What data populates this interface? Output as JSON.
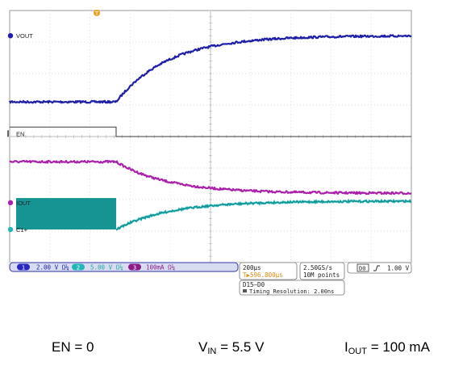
{
  "chart_data": {
    "type": "line",
    "title": "",
    "xlabel": "",
    "ylabel": "",
    "grid": true,
    "trigger_marker": "T",
    "series": [
      {
        "name": "VOUT",
        "color": "#1f1fa8",
        "marker": "1",
        "shape": "rise",
        "pre_level_div": 5.1,
        "final_level_div": 7.2,
        "trigger_div": 2.65,
        "tau_div": 1.3
      },
      {
        "name": "EN",
        "color": "#3a3a3a",
        "marker": "D0",
        "shape": "step_low",
        "high_level_div": 4.3,
        "low_level_div": 4.0,
        "trigger_div": 2.65
      },
      {
        "name": "IOUT",
        "color": "#aa22aa",
        "marker": "3",
        "shape": "fall",
        "pre_level_div": 3.2,
        "final_level_div": 2.2,
        "trigger_div": 2.65,
        "tau_div": 1.3
      },
      {
        "name": "C1+",
        "color": "#22b6b6",
        "marker": "2",
        "shape": "ripple_then_rise",
        "ripple_high_div": 2.05,
        "ripple_low_div": 1.05,
        "final_level_div": 1.95,
        "trigger_div": 2.65,
        "tau_div": 1.3
      }
    ],
    "readouts": {
      "ch1": "2.00 V  Ω¼",
      "ch2": "5.00 V  Ω¼",
      "ch3": "100mA  Ω¼",
      "timebase": "200µs",
      "trigger_pos": "T▶596.800µs",
      "sample_rate": "2.50GS/s",
      "record_length": "10M points",
      "digital_ch": "D0",
      "trigger_level": "1.00 V",
      "digital_group": "D15–D0",
      "timing_resolution": "Timing Resolution: 2.00ns",
      "ch1_num": "1",
      "ch2_num": "2",
      "ch3_num": "3"
    }
  },
  "caption": {
    "en": "EN = 0",
    "vin_prefix": "V",
    "vin_sub": "IN",
    "vin_value": " = 5.5 V",
    "iout_prefix": "I",
    "iout_sub": "OUT",
    "iout_value": " = 100 mA"
  }
}
